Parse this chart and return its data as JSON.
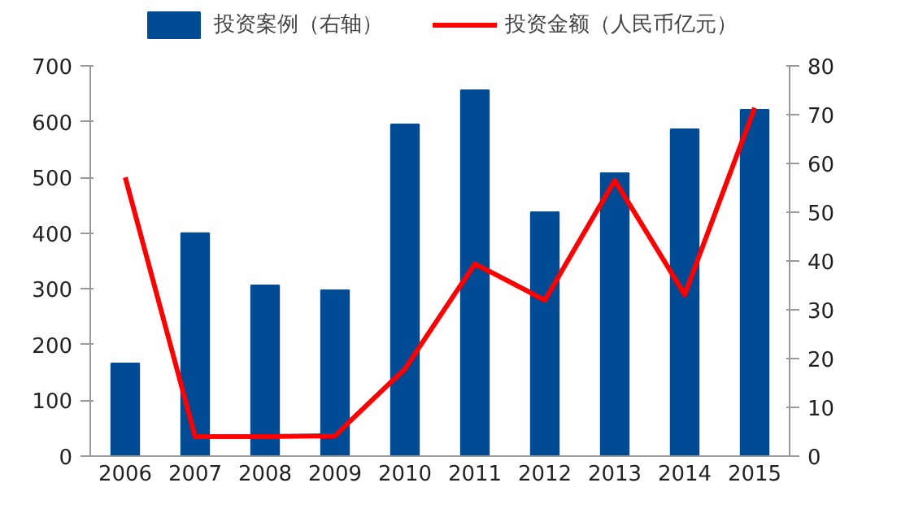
{
  "chart_data": {
    "type": "bar",
    "categories": [
      "2006",
      "2007",
      "2008",
      "2009",
      "2010",
      "2011",
      "2012",
      "2013",
      "2014",
      "2015"
    ],
    "series": [
      {
        "name": "投资案例（右轴）",
        "axis": "y2",
        "color": "#004b93",
        "values": [
          19,
          45.7,
          35,
          34,
          68,
          75,
          50,
          58,
          67,
          71
        ]
      },
      {
        "name": "投资金额（人民币亿元）",
        "type": "line",
        "color": "#ff0000",
        "values": [
          500,
          35,
          35,
          37,
          157,
          345,
          280,
          495,
          290,
          625
        ]
      }
    ],
    "ylim": [
      0,
      700
    ],
    "yticks": [
      0,
      100,
      200,
      300,
      400,
      500,
      600,
      700
    ],
    "y2lim": [
      0,
      80
    ],
    "y2ticks": [
      0,
      10,
      20,
      30,
      40,
      50,
      60,
      70,
      80
    ],
    "grid": false,
    "legend": "top"
  }
}
